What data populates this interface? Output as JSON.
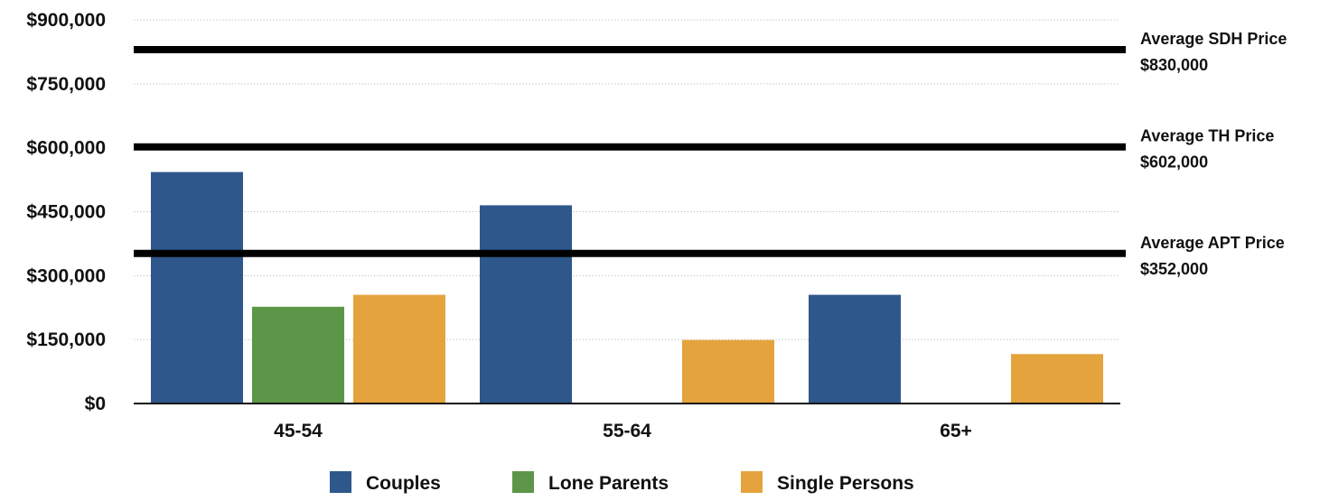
{
  "chart_data": {
    "type": "bar",
    "categories": [
      "45-54",
      "55-64",
      "65+"
    ],
    "series": [
      {
        "name": "Couples",
        "color": "#2e578c",
        "values": [
          543000,
          465000,
          255000
        ]
      },
      {
        "name": "Lone Parents",
        "color": "#5d9648",
        "values": [
          227000,
          null,
          null
        ]
      },
      {
        "name": "Single Persons",
        "color": "#e5a33d",
        "values": [
          255000,
          149000,
          116000
        ]
      }
    ],
    "ylim": [
      0,
      900000
    ],
    "y_ticks": [
      {
        "value": 0,
        "label": "$0"
      },
      {
        "value": 150000,
        "label": "$150,000"
      },
      {
        "value": 300000,
        "label": "$300,000"
      },
      {
        "value": 450000,
        "label": "$450,000"
      },
      {
        "value": 600000,
        "label": "$600,000"
      },
      {
        "value": 750000,
        "label": "$750,000"
      },
      {
        "value": 900000,
        "label": "$900,000"
      }
    ],
    "reference_lines": [
      {
        "value": 830000,
        "label": "Average SDH Price",
        "value_label": "$830,000"
      },
      {
        "value": 602000,
        "label": "Average TH Price",
        "value_label": "$602,000"
      },
      {
        "value": 352000,
        "label": "Average APT Price",
        "value_label": "$352,000"
      }
    ],
    "grid": true,
    "legend_position": "bottom"
  }
}
